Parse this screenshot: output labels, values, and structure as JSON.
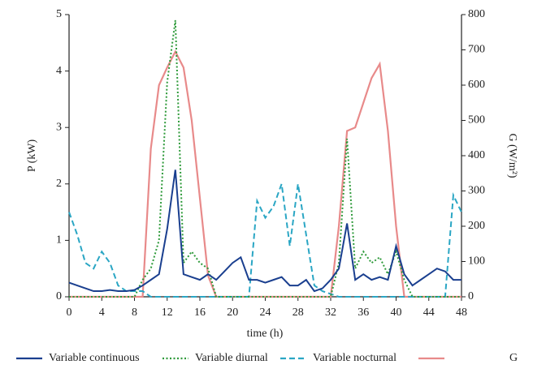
{
  "chart_data": {
    "type": "line",
    "xlabel": "time (h)",
    "ylabel": "P (kW)",
    "y2label": "G (W/m²)",
    "x": [
      0,
      1,
      2,
      3,
      4,
      5,
      6,
      7,
      8,
      9,
      10,
      11,
      12,
      13,
      14,
      15,
      16,
      17,
      18,
      19,
      20,
      21,
      22,
      23,
      24,
      25,
      26,
      27,
      28,
      29,
      30,
      31,
      32,
      33,
      34,
      35,
      36,
      37,
      38,
      39,
      40,
      41,
      42,
      43,
      44,
      45,
      46,
      47,
      48
    ],
    "xlim": [
      0,
      48
    ],
    "xticks": [
      0,
      4,
      8,
      12,
      16,
      20,
      24,
      28,
      32,
      36,
      40,
      44,
      48
    ],
    "ylim": [
      0,
      5
    ],
    "yticks": [
      0,
      1,
      2,
      3,
      4,
      5
    ],
    "y2lim": [
      0,
      800
    ],
    "y2ticks": [
      0,
      100,
      200,
      300,
      400,
      500,
      600,
      700,
      800
    ],
    "series": [
      {
        "name": "Variable continuous",
        "color": "#1a3f8f",
        "dash": "solid",
        "values": [
          0.25,
          0.2,
          0.15,
          0.1,
          0.1,
          0.12,
          0.1,
          0.1,
          0.12,
          0.2,
          0.3,
          0.4,
          1.2,
          2.25,
          0.4,
          0.35,
          0.3,
          0.4,
          0.3,
          0.45,
          0.6,
          0.7,
          0.3,
          0.3,
          0.25,
          0.3,
          0.35,
          0.2,
          0.2,
          0.3,
          0.1,
          0.15,
          0.3,
          0.5,
          1.3,
          0.3,
          0.4,
          0.3,
          0.35,
          0.3,
          0.9,
          0.4,
          0.2,
          0.3,
          0.4,
          0.5,
          0.45,
          0.3,
          0.3
        ]
      },
      {
        "name": "Variable diurnal",
        "color": "#2e9a3a",
        "dash": "dotted",
        "values": [
          0,
          0,
          0,
          0,
          0,
          0,
          0,
          0,
          0,
          0.3,
          0.5,
          1.0,
          3.8,
          4.9,
          0.6,
          0.8,
          0.6,
          0.5,
          0,
          0,
          0,
          0,
          0,
          0,
          0,
          0,
          0,
          0,
          0,
          0,
          0,
          0,
          0,
          0.6,
          2.8,
          0.5,
          0.8,
          0.6,
          0.7,
          0.4,
          0.8,
          0.3,
          0,
          0,
          0,
          0,
          0,
          0,
          0
        ]
      },
      {
        "name": "Variable nocturnal",
        "color": "#2aa6c4",
        "dash": "dashed",
        "values": [
          1.5,
          1.1,
          0.6,
          0.5,
          0.8,
          0.6,
          0.2,
          0.1,
          0.1,
          0.1,
          0,
          0,
          0,
          0,
          0,
          0,
          0,
          0,
          0,
          0,
          0,
          0,
          0,
          1.7,
          1.4,
          1.6,
          2.0,
          0.9,
          2.0,
          1.1,
          0.2,
          0.1,
          0.05,
          0,
          0,
          0,
          0,
          0,
          0,
          0,
          0,
          0,
          0,
          0,
          0,
          0,
          0,
          1.8,
          1.5
        ]
      },
      {
        "name": "G",
        "color": "#e88a8a",
        "dash": "solid",
        "axis": "y2",
        "values": [
          0,
          0,
          0,
          0,
          0,
          0,
          0,
          0,
          0,
          0,
          420,
          600,
          650,
          695,
          650,
          500,
          280,
          60,
          0,
          0,
          0,
          0,
          0,
          0,
          0,
          0,
          0,
          0,
          0,
          0,
          0,
          0,
          0,
          200,
          470,
          480,
          550,
          620,
          660,
          470,
          200,
          0,
          0,
          0,
          0,
          0,
          0,
          0,
          0
        ]
      }
    ]
  }
}
